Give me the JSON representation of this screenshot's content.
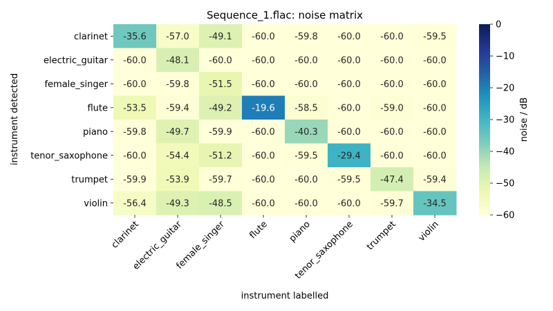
{
  "chart_data": {
    "type": "heatmap",
    "title": "Sequence_1.flac: noise matrix",
    "xlabel": "instrument labelled",
    "ylabel": "instrument detected",
    "x_categories": [
      "clarinet",
      "electric_guitar",
      "female_singer",
      "flute",
      "piano",
      "tenor_saxophone",
      "trumpet",
      "violin"
    ],
    "y_categories": [
      "clarinet",
      "electric_guitar",
      "female_singer",
      "flute",
      "piano",
      "tenor_saxophone",
      "trumpet",
      "violin"
    ],
    "values": [
      [
        -35.6,
        -57.0,
        -49.1,
        -60.0,
        -59.8,
        -60.0,
        -60.0,
        -59.5
      ],
      [
        -60.0,
        -48.1,
        -60.0,
        -60.0,
        -60.0,
        -60.0,
        -60.0,
        -60.0
      ],
      [
        -60.0,
        -59.8,
        -51.5,
        -60.0,
        -60.0,
        -60.0,
        -60.0,
        -60.0
      ],
      [
        -53.5,
        -59.4,
        -49.2,
        -19.6,
        -58.5,
        -60.0,
        -59.0,
        -60.0
      ],
      [
        -59.8,
        -49.7,
        -59.9,
        -60.0,
        -40.3,
        -60.0,
        -60.0,
        -60.0
      ],
      [
        -60.0,
        -54.4,
        -51.2,
        -60.0,
        -59.5,
        -29.4,
        -60.0,
        -60.0
      ],
      [
        -59.9,
        -53.9,
        -59.7,
        -60.0,
        -60.0,
        -59.5,
        -47.4,
        -59.4
      ],
      [
        -56.4,
        -49.3,
        -48.5,
        -60.0,
        -60.0,
        -60.0,
        -59.7,
        -34.5
      ]
    ],
    "colorbar": {
      "label": "noise / dB",
      "range": [
        -60,
        0
      ],
      "ticks": [
        0,
        -10,
        -20,
        -30,
        -40,
        -50,
        -60
      ],
      "colormap": "YlGnBu"
    },
    "grid": false
  }
}
